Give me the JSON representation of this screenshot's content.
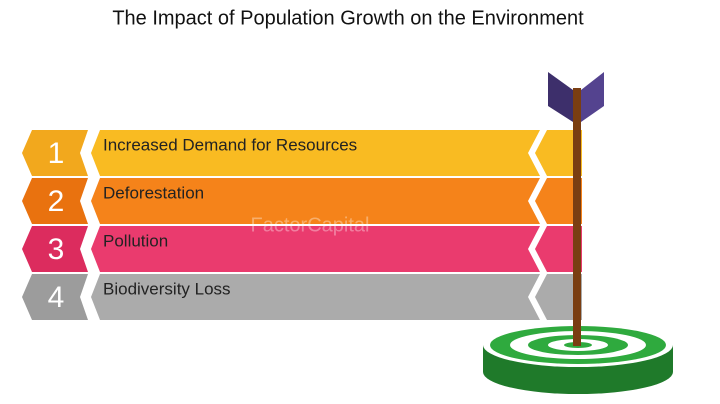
{
  "header": {
    "title": "The Impact of Population Growth on the Environment"
  },
  "watermark": "FactorCapital",
  "items": [
    {
      "number": "1",
      "label": "Increased Demand for Resources"
    },
    {
      "number": "2",
      "label": "Deforestation"
    },
    {
      "number": "3",
      "label": "Pollution"
    },
    {
      "number": "4",
      "label": "Biodiversity Loss"
    }
  ]
}
